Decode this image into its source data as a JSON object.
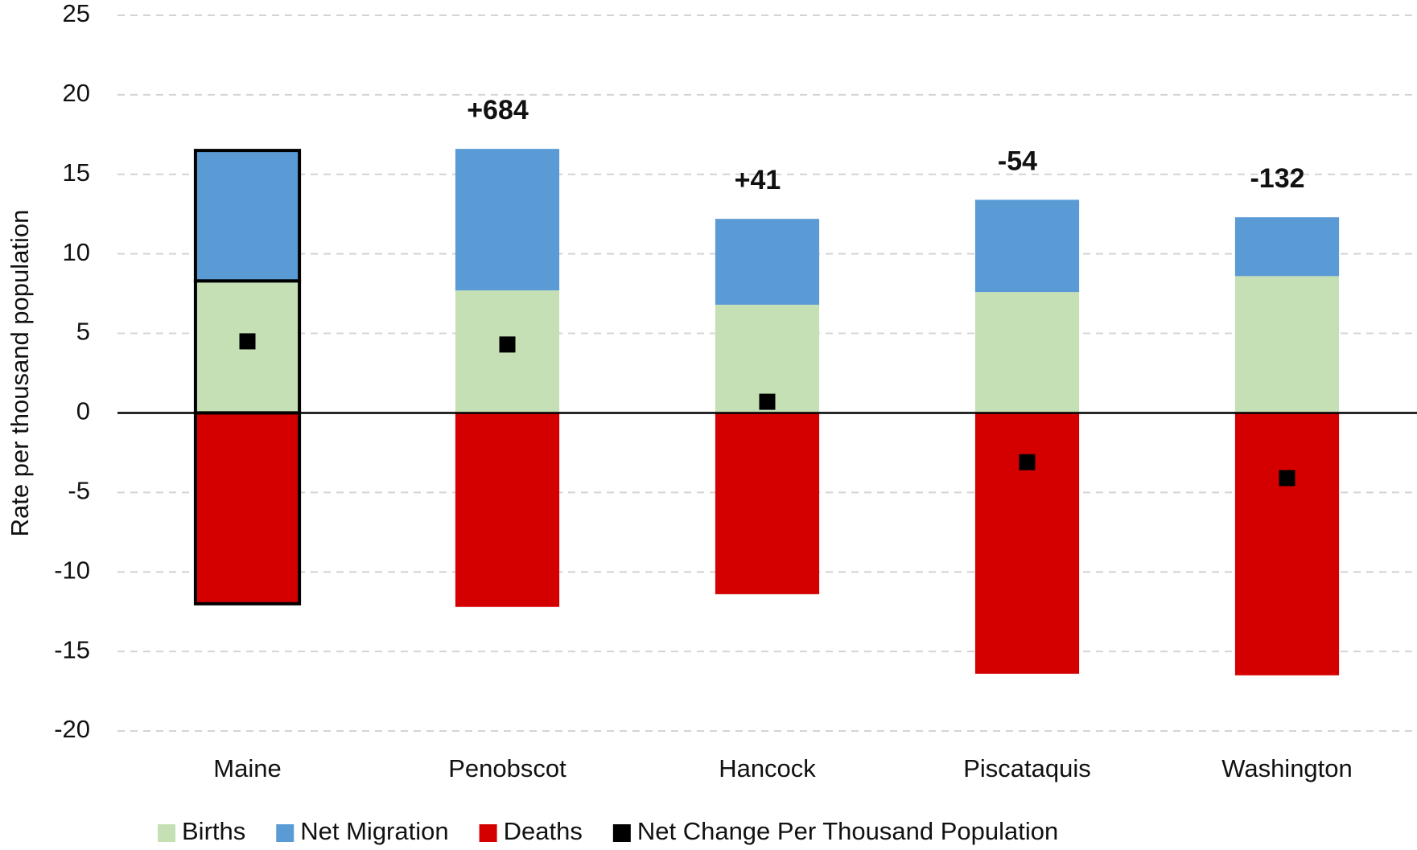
{
  "chart_data": {
    "type": "bar",
    "stacked": true,
    "y_label": "Rate per thousand population",
    "categories": [
      "Maine",
      "Penobscot",
      "Hancock",
      "Piscataquis",
      "Washington"
    ],
    "series": [
      {
        "name": "Births",
        "color": "#c5e0b4",
        "values": [
          8.3,
          7.7,
          6.8,
          7.6,
          8.6
        ]
      },
      {
        "name": "Net Migration",
        "color": "#5b9bd5",
        "values": [
          8.2,
          8.9,
          5.4,
          5.8,
          3.7
        ]
      },
      {
        "name": "Deaths",
        "color": "#d40000",
        "values": [
          -12.0,
          -12.2,
          -11.4,
          -16.4,
          -16.5
        ]
      },
      {
        "name": "Net Change Per Thousand Population",
        "color": "#000000",
        "type": "scatter",
        "values": [
          4.5,
          4.3,
          0.7,
          -3.1,
          -4.1
        ]
      }
    ],
    "annotations": [
      null,
      "+684",
      "+41",
      "-54",
      "-132"
    ],
    "highlight": "Maine",
    "ylim": [
      -20,
      25
    ],
    "yticks": [
      -20,
      -15,
      -10,
      -5,
      0,
      5,
      10,
      15,
      20,
      25
    ],
    "grid": true,
    "legend": "bottom"
  }
}
